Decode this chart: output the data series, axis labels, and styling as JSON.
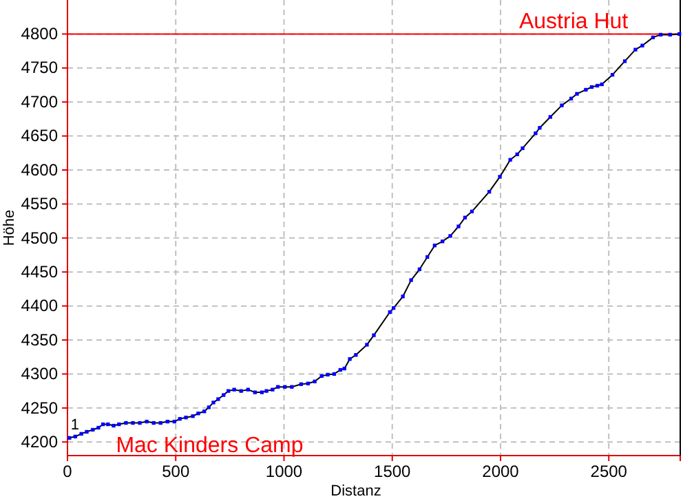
{
  "chart_data": {
    "type": "line",
    "xlabel": "Distanz",
    "ylabel": "Höhe",
    "x": [
      9,
      36,
      64,
      89,
      117,
      143,
      164,
      187,
      213,
      238,
      270,
      302,
      334,
      366,
      398,
      430,
      462,
      494,
      519,
      547,
      579,
      604,
      632,
      653,
      674,
      696,
      721,
      743,
      770,
      802,
      834,
      866,
      898,
      919,
      947,
      972,
      1004,
      1036,
      1079,
      1111,
      1142,
      1174,
      1202,
      1232,
      1260,
      1279,
      1304,
      1332,
      1383,
      1415,
      1489,
      1506,
      1549,
      1587,
      1626,
      1662,
      1696,
      1732,
      1768,
      1806,
      1836,
      1868,
      1948,
      1997,
      2045,
      2077,
      2102,
      2162,
      2181,
      2230,
      2283,
      2326,
      2353,
      2394,
      2421,
      2447,
      2468,
      2517,
      2574,
      2623,
      2655,
      2704,
      2740,
      2783,
      2826
    ],
    "series": [
      {
        "color": "#0000ff",
        "values": [
          4206,
          4208,
          4212,
          4215,
          4218,
          4221,
          4226,
          4226,
          4224,
          4226,
          4228,
          4228,
          4228,
          4230,
          4228,
          4228,
          4230,
          4230,
          4234,
          4236,
          4238,
          4242,
          4245,
          4251,
          4258,
          4263,
          4269,
          4275,
          4277,
          4275,
          4277,
          4273,
          4273,
          4275,
          4277,
          4281,
          4281,
          4281,
          4285,
          4286,
          4289,
          4297,
          4299,
          4300,
          4306,
          4308,
          4322,
          4328,
          4343,
          4357,
          4391,
          4397,
          4414,
          4438,
          4454,
          4472,
          4489,
          4495,
          4503,
          4517,
          4530,
          4539,
          4568,
          4590,
          4615,
          4623,
          4632,
          4654,
          4662,
          4678,
          4695,
          4705,
          4712,
          4718,
          4722,
          4724,
          4726,
          4740,
          4760,
          4777,
          4783,
          4795,
          4799,
          4799,
          4800
        ]
      }
    ],
    "xlim": [
      0,
      2830
    ],
    "xticks": [
      0,
      500,
      1000,
      1500,
      2000,
      2500
    ],
    "ylim": [
      4180,
      4850
    ],
    "yticks": [
      4200,
      4250,
      4300,
      4350,
      4400,
      4450,
      4500,
      4550,
      4600,
      4650,
      4700,
      4750,
      4800
    ],
    "grid": true,
    "marker": "square",
    "line_style": "solid",
    "ref_lines": [
      {
        "axis": "y",
        "value": 4800,
        "color": "#ff0000"
      }
    ],
    "annotations": [
      {
        "text": "1",
        "x": 9,
        "y": 4206
      },
      "Austria Hut",
      "Mac Kinders Camp"
    ]
  }
}
